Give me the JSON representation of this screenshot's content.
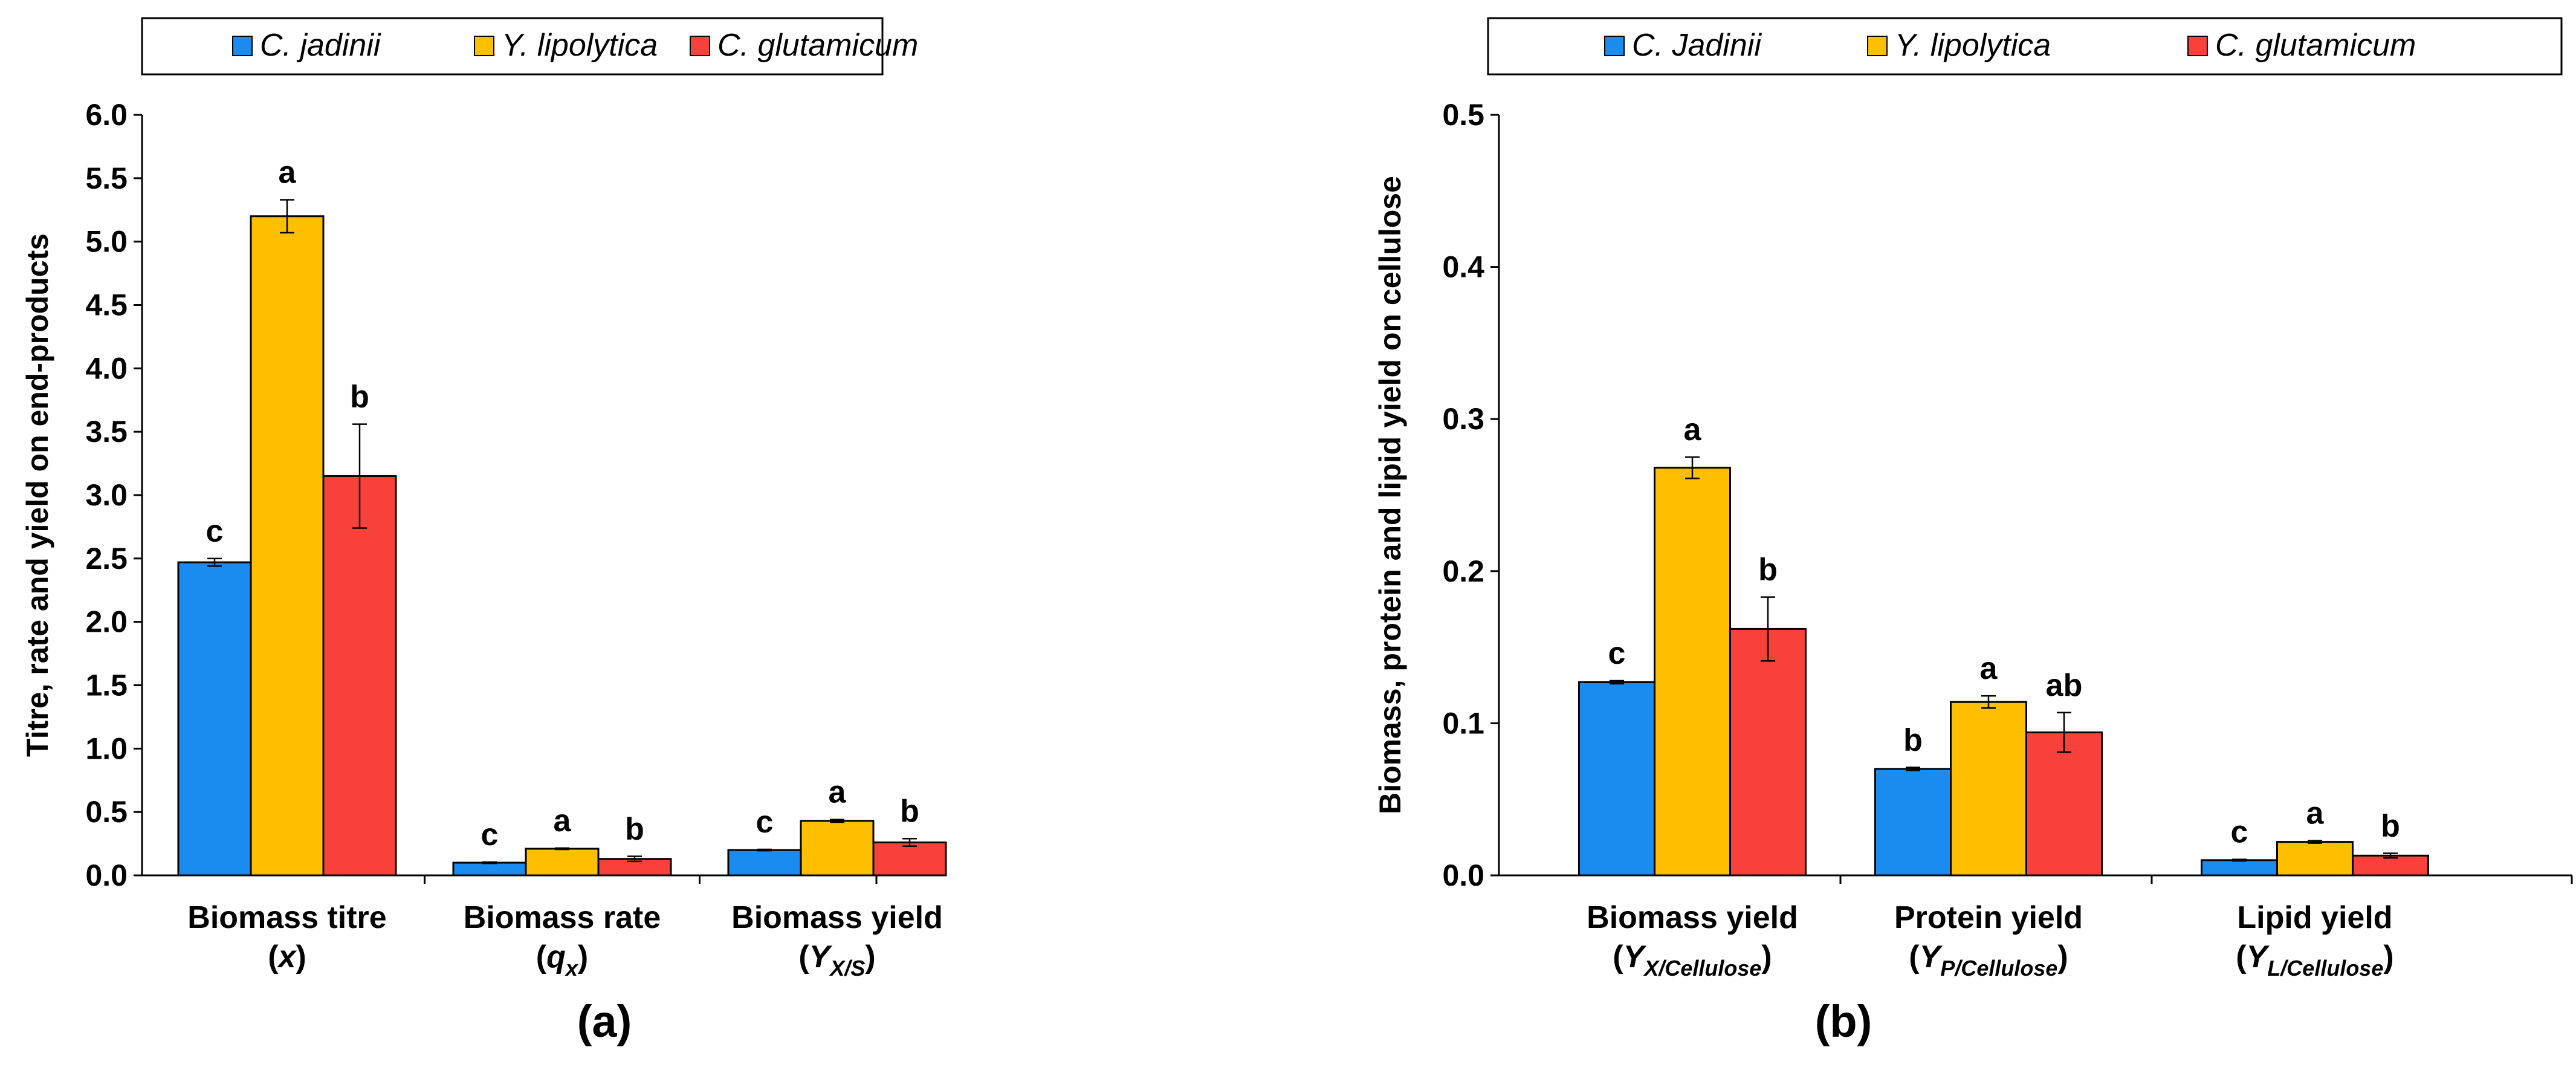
{
  "colors": {
    "C_jadinii": "#1a8cf0",
    "Y_lipolytica": "#fdbf00",
    "C_glutamicum": "#f8413b"
  },
  "chart_data": [
    {
      "type": "bar",
      "panel_label": "(a)",
      "ylabel": "Titre, rate and yield on end-products",
      "ylim": [
        0,
        6.0
      ],
      "ytick_step": 0.5,
      "ytick_labels": [
        "0.0",
        "0.5",
        "1.0",
        "1.5",
        "2.0",
        "2.5",
        "3.0",
        "3.5",
        "4.0",
        "4.5",
        "5.0",
        "5.5",
        "6.0"
      ],
      "legend": [
        "C. jadinii",
        "Y. lipolytica",
        "C. glutamicum"
      ],
      "categories": [
        {
          "label": "Biomass titre",
          "sub": "x",
          "subsub": "",
          "close": ")"
        },
        {
          "label": "Biomass rate",
          "sub": "q",
          "subsub": "x",
          "close": ")"
        },
        {
          "label": "Biomass yield",
          "sub": "Y",
          "subsub": "X/S",
          "close": ")"
        }
      ],
      "series": [
        {
          "name": "C. jadinii",
          "values": [
            2.47,
            0.1,
            0.2
          ],
          "errors": [
            0.03,
            0.005,
            0.005
          ],
          "letters": [
            "c",
            "c",
            "c"
          ]
        },
        {
          "name": "Y. lipolytica",
          "values": [
            5.2,
            0.21,
            0.43
          ],
          "errors": [
            0.13,
            0.005,
            0.01
          ],
          "letters": [
            "a",
            "a",
            "a"
          ]
        },
        {
          "name": "C. glutamicum",
          "values": [
            3.15,
            0.13,
            0.26
          ],
          "errors": [
            0.41,
            0.02,
            0.03
          ],
          "letters": [
            "b",
            "b",
            "b"
          ]
        }
      ]
    },
    {
      "type": "bar",
      "panel_label": "(b)",
      "ylabel": "Biomass, protein and lipid yield on cellulose",
      "ylim": [
        0,
        0.5
      ],
      "ytick_step": 0.1,
      "ytick_labels": [
        "0.0",
        "0.1",
        "0.2",
        "0.3",
        "0.4",
        "0.5"
      ],
      "legend": [
        "C. Jadinii",
        "Y. lipolytica",
        "C. glutamicum"
      ],
      "categories": [
        {
          "label": "Biomass yield",
          "sub": "Y",
          "subsub": "X/Cellulose",
          "close": ")"
        },
        {
          "label": "Protein yield",
          "sub": "Y",
          "subsub": "P/Cellulose",
          "close": ")"
        },
        {
          "label": "Lipid yield",
          "sub": "Y",
          "subsub": "L/Cellulose",
          "close": ")"
        }
      ],
      "series": [
        {
          "name": "C. Jadinii",
          "values": [
            0.127,
            0.07,
            0.01
          ],
          "errors": [
            0.001,
            0.001,
            0.0005
          ],
          "letters": [
            "c",
            "b",
            "c"
          ]
        },
        {
          "name": "Y. lipolytica",
          "values": [
            0.268,
            0.114,
            0.022
          ],
          "errors": [
            0.007,
            0.004,
            0.0008
          ],
          "letters": [
            "a",
            "a",
            "a"
          ]
        },
        {
          "name": "C. glutamicum",
          "values": [
            0.162,
            0.094,
            0.013
          ],
          "errors": [
            0.021,
            0.013,
            0.0015
          ],
          "letters": [
            "b",
            "ab",
            "b"
          ]
        }
      ]
    }
  ]
}
